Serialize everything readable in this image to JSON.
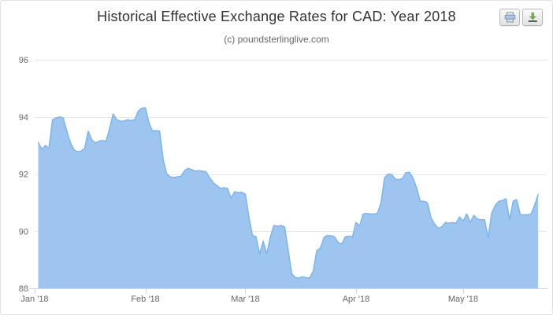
{
  "header": {
    "title": "Historical Effective Exchange Rates for CAD: Year 2018",
    "subtitle": "(c) poundsterlinglive.com"
  },
  "toolbar": {
    "buttons": [
      {
        "id": "print",
        "icon": "printer-icon"
      },
      {
        "id": "download",
        "icon": "download-icon"
      }
    ]
  },
  "chart_data": {
    "type": "area",
    "title": "Historical Effective Exchange Rates for CAD: Year 2018",
    "subtitle": "(c) poundsterlinglive.com",
    "legend": "none",
    "grid": "horizontal",
    "x_axis": {
      "unit": "days since 2018-01-01",
      "min": 0,
      "max": 143.4,
      "ticks": [
        {
          "label": "Jan '18",
          "day": 0
        },
        {
          "label": "Feb '18",
          "day": 31
        },
        {
          "label": "Mar '18",
          "day": 59
        },
        {
          "label": "Apr '18",
          "day": 90
        },
        {
          "label": "May '18",
          "day": 120
        }
      ]
    },
    "y_axis": {
      "min": 88,
      "max": 96,
      "ticks": [
        88,
        90,
        92,
        94,
        96
      ]
    },
    "series": [
      {
        "x_first_day": 1,
        "x_step_days": 1,
        "values": [
          93.1,
          92.87,
          93.0,
          92.9,
          93.9,
          93.96,
          94.0,
          93.96,
          93.5,
          93.1,
          92.85,
          92.78,
          92.8,
          92.9,
          93.5,
          93.2,
          93.08,
          93.15,
          93.17,
          93.15,
          93.6,
          94.1,
          93.9,
          93.85,
          93.85,
          93.9,
          93.87,
          93.9,
          94.2,
          94.3,
          94.32,
          93.8,
          93.5,
          93.52,
          93.5,
          92.5,
          92.0,
          91.9,
          91.88,
          91.9,
          91.92,
          92.12,
          92.2,
          92.15,
          92.1,
          92.12,
          92.1,
          92.08,
          91.87,
          91.7,
          91.6,
          91.5,
          91.52,
          91.5,
          91.16,
          91.38,
          91.35,
          91.36,
          91.3,
          90.5,
          89.85,
          89.8,
          89.2,
          89.65,
          89.2,
          89.8,
          90.2,
          90.17,
          90.2,
          90.15,
          89.35,
          88.5,
          88.38,
          88.36,
          88.4,
          88.37,
          88.36,
          88.6,
          89.32,
          89.4,
          89.78,
          89.85,
          89.84,
          89.8,
          89.6,
          89.55,
          89.8,
          89.82,
          89.8,
          90.3,
          90.18,
          90.6,
          90.62,
          90.6,
          90.6,
          90.62,
          91.0,
          91.87,
          92.0,
          91.98,
          91.82,
          91.8,
          91.85,
          92.05,
          92.06,
          91.85,
          91.5,
          91.05,
          91.05,
          91.0,
          90.47,
          90.25,
          90.1,
          90.15,
          90.3,
          90.28,
          90.3,
          90.28,
          90.5,
          90.35,
          90.6,
          90.3,
          90.55,
          90.42,
          90.4,
          90.4,
          89.78,
          90.63,
          90.9,
          91.05,
          91.07,
          91.13,
          90.4,
          91.05,
          91.1,
          90.58,
          90.57,
          90.57,
          90.6,
          90.9,
          91.28
        ]
      }
    ],
    "colors": {
      "line": "#7cb5ec",
      "fill": "#9dc5f0",
      "grid": "#e6e6e6",
      "axis_line": "#ccd6eb",
      "label": "#666666",
      "title": "#333333",
      "subtitle": "#666666"
    }
  }
}
